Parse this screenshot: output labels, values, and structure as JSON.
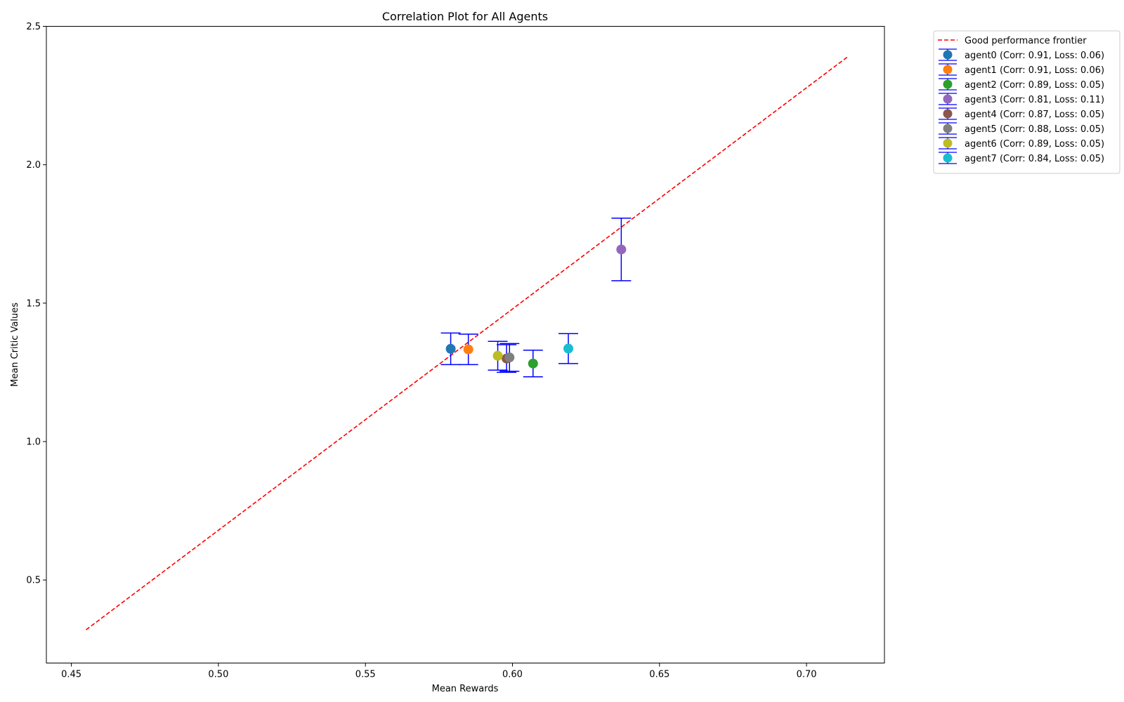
{
  "chart_data": {
    "type": "scatter",
    "title": "Correlation Plot for All Agents",
    "xlabel": "Mean Rewards",
    "ylabel": "Mean Critic Values",
    "xlim": [
      0.4415,
      0.7265
    ],
    "ylim": [
      0.2,
      2.5
    ],
    "xticks": [
      "0.45",
      "0.50",
      "0.55",
      "0.60",
      "0.65",
      "0.70"
    ],
    "yticks": [
      "0.5",
      "1.0",
      "1.5",
      "2.0",
      "2.5"
    ],
    "grid": false,
    "legend_position": "outside top-right",
    "frontier": {
      "label": "Good performance frontier",
      "color": "#ff0000",
      "style": "dashed",
      "x": [
        0.455,
        0.714
      ],
      "y": [
        0.32,
        2.39
      ]
    },
    "errorbar_color": "#0000ff",
    "series": [
      {
        "name": "agent0 (Corr: 0.91, Loss: 0.06)",
        "color": "#1f77b4",
        "x": 0.579,
        "y": 1.335,
        "yerr": 0.057
      },
      {
        "name": "agent1 (Corr: 0.91, Loss: 0.06)",
        "color": "#ff7f0e",
        "x": 0.585,
        "y": 1.333,
        "yerr": 0.055
      },
      {
        "name": "agent2 (Corr: 0.89, Loss: 0.05)",
        "color": "#2ca02c",
        "x": 0.607,
        "y": 1.282,
        "yerr": 0.048
      },
      {
        "name": "agent3 (Corr: 0.81, Loss: 0.11)",
        "color": "#9467bd",
        "x": 0.637,
        "y": 1.694,
        "yerr": 0.113
      },
      {
        "name": "agent4 (Corr: 0.87, Loss: 0.05)",
        "color": "#8c564b",
        "x": 0.598,
        "y": 1.3,
        "yerr": 0.05
      },
      {
        "name": "agent5 (Corr: 0.88, Loss: 0.05)",
        "color": "#7f7f7f",
        "x": 0.599,
        "y": 1.304,
        "yerr": 0.05
      },
      {
        "name": "agent6 (Corr: 0.89, Loss: 0.05)",
        "color": "#bcbd22",
        "x": 0.595,
        "y": 1.31,
        "yerr": 0.052
      },
      {
        "name": "agent7 (Corr: 0.84, Loss: 0.05)",
        "color": "#17becf",
        "x": 0.619,
        "y": 1.336,
        "yerr": 0.054
      }
    ]
  }
}
